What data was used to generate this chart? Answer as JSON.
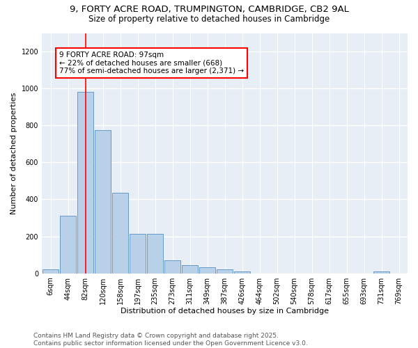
{
  "title_line1": "9, FORTY ACRE ROAD, TRUMPINGTON, CAMBRIDGE, CB2 9AL",
  "title_line2": "Size of property relative to detached houses in Cambridge",
  "xlabel": "Distribution of detached houses by size in Cambridge",
  "ylabel": "Number of detached properties",
  "bar_labels": [
    "6sqm",
    "44sqm",
    "82sqm",
    "120sqm",
    "158sqm",
    "197sqm",
    "235sqm",
    "273sqm",
    "311sqm",
    "349sqm",
    "387sqm",
    "426sqm",
    "464sqm",
    "502sqm",
    "540sqm",
    "578sqm",
    "617sqm",
    "655sqm",
    "693sqm",
    "731sqm",
    "769sqm"
  ],
  "bar_values": [
    22,
    310,
    980,
    775,
    435,
    215,
    215,
    70,
    45,
    32,
    20,
    10,
    0,
    0,
    0,
    0,
    0,
    0,
    0,
    10,
    0
  ],
  "bar_color": "#b8d0e8",
  "bar_edge_color": "#6699cc",
  "vline_x": 2,
  "vline_color": "red",
  "annotation_text": "9 FORTY ACRE ROAD: 97sqm\n← 22% of detached houses are smaller (668)\n77% of semi-detached houses are larger (2,371) →",
  "annotation_box_color": "white",
  "annotation_box_edgecolor": "red",
  "ylim": [
    0,
    1300
  ],
  "yticks": [
    0,
    200,
    400,
    600,
    800,
    1000,
    1200
  ],
  "background_color": "#e8eef5",
  "grid_color": "white",
  "footer_text": "Contains HM Land Registry data © Crown copyright and database right 2025.\nContains public sector information licensed under the Open Government Licence v3.0.",
  "title_fontsize": 9.5,
  "subtitle_fontsize": 8.5,
  "axis_label_fontsize": 8,
  "tick_fontsize": 7,
  "annotation_fontsize": 7.5,
  "footer_fontsize": 6.5
}
